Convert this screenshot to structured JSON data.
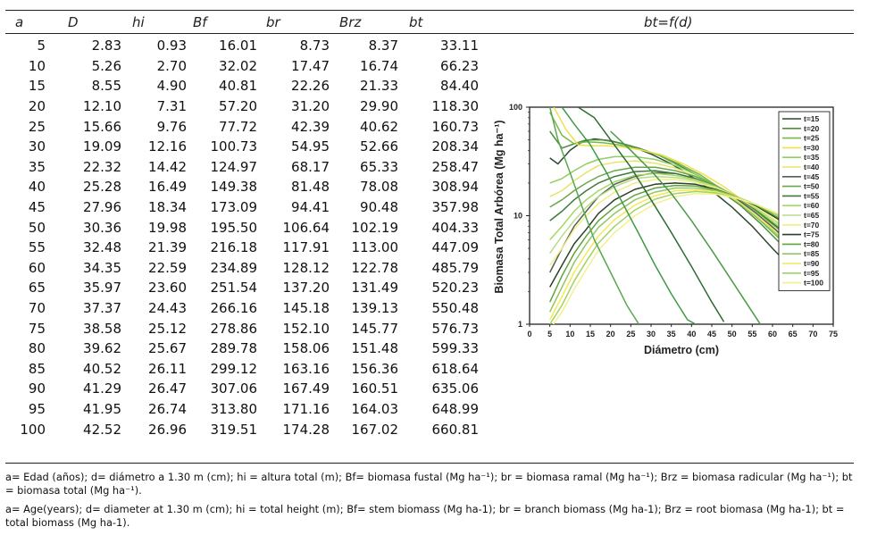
{
  "table": {
    "headers": [
      "a",
      "D",
      "hi",
      "Bf",
      "br",
      "Brz",
      "bt"
    ],
    "rows": [
      [
        "5",
        "2.83",
        "0.93",
        "16.01",
        "8.73",
        "8.37",
        "33.11"
      ],
      [
        "10",
        "5.26",
        "2.70",
        "32.02",
        "17.47",
        "16.74",
        "66.23"
      ],
      [
        "15",
        "8.55",
        "4.90",
        "40.81",
        "22.26",
        "21.33",
        "84.40"
      ],
      [
        "20",
        "12.10",
        "7.31",
        "57.20",
        "31.20",
        "29.90",
        "118.30"
      ],
      [
        "25",
        "15.66",
        "9.76",
        "77.72",
        "42.39",
        "40.62",
        "160.73"
      ],
      [
        "30",
        "19.09",
        "12.16",
        "100.73",
        "54.95",
        "52.66",
        "208.34"
      ],
      [
        "35",
        "22.32",
        "14.42",
        "124.97",
        "68.17",
        "65.33",
        "258.47"
      ],
      [
        "40",
        "25.28",
        "16.49",
        "149.38",
        "81.48",
        "78.08",
        "308.94"
      ],
      [
        "45",
        "27.96",
        "18.34",
        "173.09",
        "94.41",
        "90.48",
        "357.98"
      ],
      [
        "50",
        "30.36",
        "19.98",
        "195.50",
        "106.64",
        "102.19",
        "404.33"
      ],
      [
        "55",
        "32.48",
        "21.39",
        "216.18",
        "117.91",
        "113.00",
        "447.09"
      ],
      [
        "60",
        "34.35",
        "22.59",
        "234.89",
        "128.12",
        "122.78",
        "485.79"
      ],
      [
        "65",
        "35.97",
        "23.60",
        "251.54",
        "137.20",
        "131.49",
        "520.23"
      ],
      [
        "70",
        "37.37",
        "24.43",
        "266.16",
        "145.18",
        "139.13",
        "550.48"
      ],
      [
        "75",
        "38.58",
        "25.12",
        "278.86",
        "152.10",
        "145.77",
        "576.73"
      ],
      [
        "80",
        "39.62",
        "25.67",
        "289.78",
        "158.06",
        "151.48",
        "599.33"
      ],
      [
        "85",
        "40.52",
        "26.11",
        "299.12",
        "163.16",
        "156.36",
        "618.64"
      ],
      [
        "90",
        "41.29",
        "26.47",
        "307.06",
        "167.49",
        "160.51",
        "635.06"
      ],
      [
        "95",
        "41.95",
        "26.74",
        "313.80",
        "171.16",
        "164.03",
        "648.99"
      ],
      [
        "100",
        "42.52",
        "26.96",
        "319.51",
        "174.28",
        "167.02",
        "660.81"
      ]
    ]
  },
  "figure_header": "bt=f(d)",
  "footnote_es": "a= Edad (años); d= diámetro a 1.30 m (cm); hi = altura total (m); Bf= biomasa fustal (Mg ha⁻¹); br = biomasa ramal (Mg ha⁻¹); Brz = biomasa radicular (Mg ha⁻¹); bt = biomasa total (Mg ha⁻¹).",
  "footnote_en": "a= Age(years); d= diameter at 1.30 m (cm); hi = total height (m); Bf= stem biomass (Mg ha-1); br = branch biomass (Mg ha-1); Brz = root biomasa (Mg ha-1); bt = total biomass (Mg ha-1).",
  "chart_data": {
    "type": "line",
    "title": "bt=f(d)",
    "xlabel": "Diámetro (cm)",
    "ylabel": "Biomasa Total Arbórea (Mg ha⁻¹)",
    "xlim": [
      0,
      75
    ],
    "ylim": [
      1,
      100
    ],
    "yscale": "log",
    "xticks": [
      "0",
      "5",
      "10",
      "15",
      "20",
      "25",
      "30",
      "35",
      "40",
      "45",
      "50",
      "55",
      "60",
      "65",
      "70",
      "75"
    ],
    "yticks": [
      "1",
      "10",
      "100"
    ],
    "legend_position": "top-right",
    "series": [
      {
        "name": "t=15",
        "color": "#2d4a2d",
        "x": [
          5,
          7,
          10,
          13,
          16,
          20,
          25,
          30,
          35,
          40,
          45,
          50,
          55,
          60,
          65
        ],
        "y": [
          34,
          30,
          40,
          48,
          51,
          49,
          44,
          37,
          30,
          23,
          17,
          12,
          8,
          5,
          3.2
        ]
      },
      {
        "name": "t=20",
        "color": "#4c8f3c",
        "x": [
          5,
          8,
          11,
          14,
          18,
          22,
          27,
          32,
          37,
          42,
          47,
          52,
          57,
          62,
          67
        ],
        "y": [
          60,
          42,
          46,
          50,
          50,
          47,
          42,
          36,
          29,
          23,
          17,
          12.5,
          8.5,
          5.5,
          3.5
        ]
      },
      {
        "name": "t=25",
        "color": "#78b848",
        "x": [
          5,
          8,
          11,
          14,
          18,
          22,
          27,
          32,
          37,
          42,
          47,
          52,
          57,
          62,
          68
        ],
        "y": [
          90,
          55,
          46,
          48,
          47,
          45,
          41,
          36,
          30,
          24,
          18,
          13,
          9,
          6,
          3.5
        ]
      },
      {
        "name": "t=30",
        "color": "#f0e04c",
        "x": [
          6,
          9,
          12,
          15,
          19,
          23,
          28,
          33,
          38,
          43,
          48,
          53,
          58,
          63,
          68
        ],
        "y": [
          100,
          62,
          45,
          44,
          44,
          43,
          40,
          36,
          30,
          24,
          18.5,
          13.5,
          9.5,
          6.2,
          3.8
        ]
      },
      {
        "name": "t=35",
        "color": "#8fcf5c",
        "x": [
          5,
          8,
          11,
          14,
          17,
          21,
          26,
          31,
          36,
          41,
          46,
          51,
          56,
          61,
          66
        ],
        "y": [
          20,
          22,
          26,
          30,
          33,
          35,
          35,
          33,
          29,
          24,
          19,
          14,
          10,
          6.8,
          4.3
        ]
      },
      {
        "name": "t=40",
        "color": "#e8e468",
        "x": [
          5,
          8,
          11,
          14,
          17,
          21,
          26,
          31,
          36,
          41,
          46,
          51,
          56,
          61,
          66
        ],
        "y": [
          15,
          17,
          21,
          25,
          29,
          31,
          32,
          30.5,
          27.5,
          23,
          18.5,
          14,
          10,
          7,
          4.5
        ]
      },
      {
        "name": "t=45",
        "color": "#555f55",
        "x": [
          5,
          8,
          11,
          14,
          17,
          21,
          26,
          31,
          36,
          41,
          46,
          51,
          56,
          61,
          66
        ],
        "y": [
          3,
          5,
          8,
          11,
          15,
          19.5,
          23,
          25,
          24.5,
          22,
          18.5,
          14.5,
          10.5,
          7.3,
          4.8
        ]
      },
      {
        "name": "t=50",
        "color": "#69a848",
        "x": [
          5,
          8,
          11,
          14,
          17,
          21,
          26,
          31,
          36,
          41,
          46,
          51,
          56,
          61,
          66
        ],
        "y": [
          12,
          14,
          17,
          20,
          23,
          26,
          28,
          28,
          26,
          23,
          19,
          15,
          11,
          7.8,
          5.2
        ]
      },
      {
        "name": "t=55",
        "color": "#3d7a3d",
        "x": [
          5,
          8,
          11,
          14,
          17,
          21,
          26,
          31,
          36,
          41,
          46,
          51,
          56,
          61,
          66
        ],
        "y": [
          9,
          11,
          14,
          17,
          20,
          23,
          25.5,
          26,
          24.5,
          22,
          18.5,
          15,
          11.3,
          8,
          5.5
        ]
      },
      {
        "name": "t=60",
        "color": "#a4d860",
        "x": [
          5,
          8,
          11,
          14,
          17,
          21,
          26,
          31,
          36,
          41,
          46,
          51,
          56,
          61,
          66
        ],
        "y": [
          6,
          8,
          11,
          14,
          17,
          20.5,
          23.5,
          24.5,
          23.5,
          21.5,
          18.5,
          15,
          11.5,
          8.3,
          5.8
        ]
      },
      {
        "name": "t=65",
        "color": "#b7dc88",
        "x": [
          5,
          8,
          11,
          14,
          17,
          21,
          26,
          31,
          36,
          41,
          46,
          51,
          56,
          61,
          66
        ],
        "y": [
          4.5,
          6.5,
          9,
          12,
          15,
          18.5,
          22,
          23,
          22.5,
          21,
          18.3,
          15,
          11.8,
          8.7,
          6.2
        ]
      },
      {
        "name": "t=70",
        "color": "#f2ee84",
        "x": [
          5,
          8,
          11,
          14,
          17,
          21,
          26,
          31,
          36,
          41,
          46,
          51,
          56,
          61,
          66
        ],
        "y": [
          3.5,
          5,
          7.5,
          10,
          13,
          16.5,
          20,
          21.5,
          21.5,
          20.3,
          18,
          15,
          12,
          9,
          6.5
        ]
      },
      {
        "name": "t=75",
        "color": "#2c3e2c",
        "x": [
          5,
          8,
          11,
          14,
          17,
          21,
          26,
          31,
          36,
          41,
          46,
          51,
          56,
          61,
          66,
          70
        ],
        "y": [
          2.2,
          3.5,
          5.5,
          7.5,
          10.5,
          14,
          17.5,
          19.5,
          20,
          19.5,
          17.5,
          15,
          12.3,
          9.5,
          7,
          5
        ]
      },
      {
        "name": "t=80",
        "color": "#5ba63a",
        "x": [
          5,
          8,
          11,
          14,
          17,
          21,
          26,
          31,
          36,
          41,
          46,
          51,
          56,
          61,
          66,
          70
        ],
        "y": [
          1.6,
          2.8,
          4.5,
          6.5,
          9,
          12,
          15.5,
          18,
          19,
          18.8,
          17.3,
          15,
          12.5,
          9.8,
          7.3,
          5.3
        ]
      },
      {
        "name": "t=85",
        "color": "#92c660",
        "x": [
          5,
          8,
          11,
          14,
          17,
          21,
          26,
          31,
          36,
          41,
          46,
          51,
          56,
          61,
          66,
          70
        ],
        "y": [
          1.3,
          2.2,
          3.7,
          5.5,
          7.8,
          10.5,
          14,
          16.5,
          18,
          18,
          17,
          15,
          12.7,
          10.2,
          7.8,
          5.8
        ]
      },
      {
        "name": "t=90",
        "color": "#f5e955",
        "x": [
          5,
          8,
          11,
          14,
          17,
          21,
          26,
          31,
          36,
          41,
          46,
          51,
          56,
          61,
          66,
          70
        ],
        "y": [
          1.1,
          1.8,
          3,
          4.5,
          6.5,
          9.2,
          12.5,
          15.3,
          17,
          17.3,
          16.6,
          14.8,
          12.7,
          10.4,
          8,
          6.1
        ]
      },
      {
        "name": "t=95",
        "color": "#9fd26a",
        "x": [
          5,
          8,
          11,
          14,
          17,
          21,
          26,
          31,
          36,
          41,
          46,
          51,
          56,
          61,
          66,
          70
        ],
        "y": [
          1,
          1.5,
          2.5,
          3.8,
          5.6,
          8,
          11.3,
          14.2,
          16,
          16.7,
          16.2,
          14.6,
          12.7,
          10.5,
          8.2,
          6.4
        ]
      },
      {
        "name": "t=100",
        "color": "#f3f08e",
        "x": [
          5,
          8,
          11,
          14,
          17,
          21,
          26,
          31,
          36,
          41,
          46,
          51,
          56,
          61,
          66,
          70
        ],
        "y": [
          0.9,
          1.3,
          2.1,
          3.2,
          4.8,
          7,
          10,
          12.9,
          15,
          16,
          15.8,
          14.5,
          12.7,
          10.6,
          8.4,
          6.6
        ]
      },
      {
        "name": "",
        "color": "#58a850",
        "x": [
          5,
          7,
          10,
          13,
          16,
          20,
          24,
          27
        ],
        "y": [
          100,
          50,
          25,
          12,
          6,
          3,
          1.5,
          1
        ]
      },
      {
        "name": "",
        "color": "#3f9a46",
        "x": [
          8,
          11,
          15,
          19,
          23,
          27,
          31,
          35,
          39,
          41
        ],
        "y": [
          100,
          70,
          45,
          25,
          13,
          6.8,
          3.5,
          1.9,
          1.1,
          1
        ]
      },
      {
        "name": "",
        "color": "#2e6d32",
        "x": [
          12,
          16,
          20,
          25,
          30,
          35,
          40,
          45,
          48
        ],
        "y": [
          100,
          80,
          50,
          28,
          14,
          7,
          3.4,
          1.6,
          1.05
        ]
      },
      {
        "name": "",
        "color": "#4a9a45",
        "x": [
          20,
          25,
          30,
          35,
          40,
          45,
          50,
          55,
          57
        ],
        "y": [
          60,
          40,
          26,
          16,
          9,
          4.8,
          2.5,
          1.3,
          1
        ]
      }
    ]
  }
}
